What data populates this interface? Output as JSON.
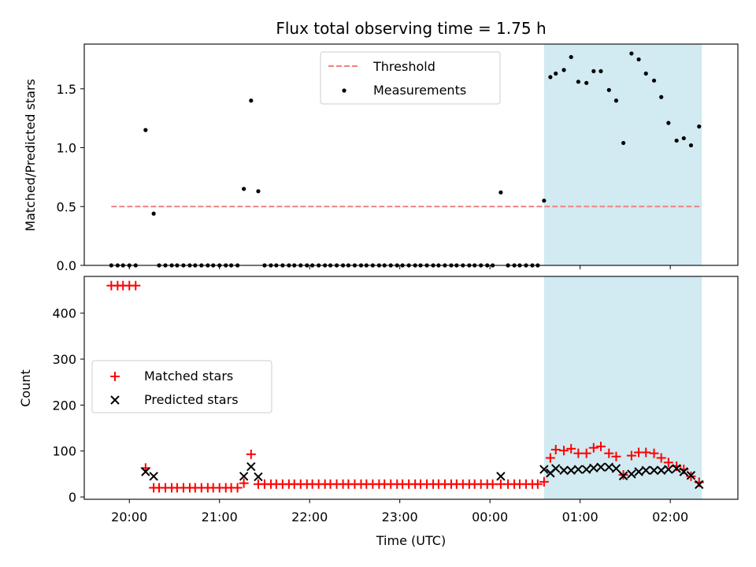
{
  "chart_data": [
    {
      "type": "scatter",
      "title": "Flux total observing time = 1.75 h",
      "ylabel": "Matched/Predicted stars",
      "ylim": [
        0,
        1.88
      ],
      "yticks": [
        "0.0",
        "0.5",
        "1.0",
        "1.5"
      ],
      "ytick_values": [
        0,
        0.5,
        1.0,
        1.5
      ],
      "legend_position": "upper center",
      "shaded_interval_hours": [
        24.6,
        26.35
      ],
      "threshold": {
        "name": "Threshold",
        "value": 0.5,
        "x_range": [
          19.8,
          26.35
        ],
        "color": "#f08080"
      },
      "series": [
        {
          "name": "Measurements",
          "color": "#000000",
          "marker": "dot",
          "points": [
            [
              19.8,
              0
            ],
            [
              19.87,
              0
            ],
            [
              19.93,
              0
            ],
            [
              20.0,
              0
            ],
            [
              20.07,
              0
            ],
            [
              20.18,
              1.15
            ],
            [
              20.27,
              0.44
            ],
            [
              20.33,
              0
            ],
            [
              20.4,
              0
            ],
            [
              20.47,
              0
            ],
            [
              20.53,
              0
            ],
            [
              20.6,
              0
            ],
            [
              20.67,
              0
            ],
            [
              20.73,
              0
            ],
            [
              20.8,
              0
            ],
            [
              20.87,
              0
            ],
            [
              20.93,
              0
            ],
            [
              21.0,
              0
            ],
            [
              21.07,
              0
            ],
            [
              21.13,
              0
            ],
            [
              21.2,
              0
            ],
            [
              21.27,
              0.65
            ],
            [
              21.35,
              1.4
            ],
            [
              21.43,
              0.63
            ],
            [
              21.5,
              0
            ],
            [
              21.57,
              0
            ],
            [
              21.63,
              0
            ],
            [
              21.7,
              0
            ],
            [
              21.77,
              0
            ],
            [
              21.83,
              0
            ],
            [
              21.9,
              0
            ],
            [
              21.97,
              0
            ],
            [
              22.03,
              0
            ],
            [
              22.1,
              0
            ],
            [
              22.17,
              0
            ],
            [
              22.23,
              0
            ],
            [
              22.3,
              0
            ],
            [
              22.37,
              0
            ],
            [
              22.43,
              0
            ],
            [
              22.5,
              0
            ],
            [
              22.57,
              0
            ],
            [
              22.63,
              0
            ],
            [
              22.7,
              0
            ],
            [
              22.77,
              0
            ],
            [
              22.83,
              0
            ],
            [
              22.9,
              0
            ],
            [
              22.97,
              0
            ],
            [
              23.03,
              0
            ],
            [
              23.1,
              0
            ],
            [
              23.17,
              0
            ],
            [
              23.23,
              0
            ],
            [
              23.3,
              0
            ],
            [
              23.37,
              0
            ],
            [
              23.43,
              0
            ],
            [
              23.5,
              0
            ],
            [
              23.57,
              0
            ],
            [
              23.63,
              0
            ],
            [
              23.7,
              0
            ],
            [
              23.77,
              0
            ],
            [
              23.83,
              0
            ],
            [
              23.9,
              0
            ],
            [
              23.97,
              0
            ],
            [
              24.03,
              0
            ],
            [
              24.12,
              0.62
            ],
            [
              24.2,
              0
            ],
            [
              24.27,
              0
            ],
            [
              24.33,
              0
            ],
            [
              24.4,
              0
            ],
            [
              24.47,
              0
            ],
            [
              24.53,
              0
            ],
            [
              24.6,
              0.55
            ],
            [
              24.67,
              1.6
            ],
            [
              24.73,
              1.63
            ],
            [
              24.82,
              1.66
            ],
            [
              24.9,
              1.77
            ],
            [
              24.98,
              1.56
            ],
            [
              25.07,
              1.55
            ],
            [
              25.15,
              1.65
            ],
            [
              25.23,
              1.65
            ],
            [
              25.32,
              1.49
            ],
            [
              25.4,
              1.4
            ],
            [
              25.48,
              1.04
            ],
            [
              25.57,
              1.8
            ],
            [
              25.65,
              1.75
            ],
            [
              25.73,
              1.63
            ],
            [
              25.82,
              1.57
            ],
            [
              25.9,
              1.43
            ],
            [
              25.98,
              1.21
            ],
            [
              26.07,
              1.06
            ],
            [
              26.15,
              1.08
            ],
            [
              26.23,
              1.02
            ],
            [
              26.32,
              1.18
            ]
          ]
        }
      ]
    },
    {
      "type": "scatter",
      "xlabel": "Time (UTC)",
      "ylabel": "Count",
      "ylim": [
        -5,
        480
      ],
      "yticks": [
        "0",
        "100",
        "200",
        "300",
        "400"
      ],
      "ytick_values": [
        0,
        100,
        200,
        300,
        400
      ],
      "xlim": [
        19.5,
        26.75
      ],
      "xticks": [
        "20:00",
        "21:00",
        "22:00",
        "23:00",
        "00:00",
        "01:00",
        "02:00"
      ],
      "xtick_values": [
        20,
        21,
        22,
        23,
        24,
        25,
        26
      ],
      "legend_position": "center left",
      "shaded_interval_hours": [
        24.6,
        26.35
      ],
      "series": [
        {
          "name": "Matched stars",
          "color": "#ff0000",
          "marker": "plus",
          "points": [
            [
              19.8,
              460
            ],
            [
              19.87,
              460
            ],
            [
              19.93,
              460
            ],
            [
              20.0,
              460
            ],
            [
              20.07,
              460
            ],
            [
              20.18,
              63
            ],
            [
              20.27,
              20
            ],
            [
              20.33,
              20
            ],
            [
              20.4,
              20
            ],
            [
              20.47,
              20
            ],
            [
              20.53,
              20
            ],
            [
              20.6,
              20
            ],
            [
              20.67,
              20
            ],
            [
              20.73,
              20
            ],
            [
              20.8,
              20
            ],
            [
              20.87,
              20
            ],
            [
              20.93,
              20
            ],
            [
              21.0,
              20
            ],
            [
              21.07,
              20
            ],
            [
              21.13,
              20
            ],
            [
              21.2,
              20
            ],
            [
              21.27,
              30
            ],
            [
              21.35,
              93
            ],
            [
              21.43,
              28
            ],
            [
              21.5,
              28
            ],
            [
              21.57,
              28
            ],
            [
              21.63,
              28
            ],
            [
              21.7,
              28
            ],
            [
              21.77,
              28
            ],
            [
              21.83,
              28
            ],
            [
              21.9,
              28
            ],
            [
              21.97,
              28
            ],
            [
              22.03,
              28
            ],
            [
              22.1,
              28
            ],
            [
              22.17,
              28
            ],
            [
              22.23,
              28
            ],
            [
              22.3,
              28
            ],
            [
              22.37,
              28
            ],
            [
              22.43,
              28
            ],
            [
              22.5,
              28
            ],
            [
              22.57,
              28
            ],
            [
              22.63,
              28
            ],
            [
              22.7,
              28
            ],
            [
              22.77,
              28
            ],
            [
              22.83,
              28
            ],
            [
              22.9,
              28
            ],
            [
              22.97,
              28
            ],
            [
              23.03,
              28
            ],
            [
              23.1,
              28
            ],
            [
              23.17,
              28
            ],
            [
              23.23,
              28
            ],
            [
              23.3,
              28
            ],
            [
              23.37,
              28
            ],
            [
              23.43,
              28
            ],
            [
              23.5,
              28
            ],
            [
              23.57,
              28
            ],
            [
              23.63,
              28
            ],
            [
              23.7,
              28
            ],
            [
              23.77,
              28
            ],
            [
              23.83,
              28
            ],
            [
              23.9,
              28
            ],
            [
              23.97,
              28
            ],
            [
              24.03,
              28
            ],
            [
              24.12,
              28
            ],
            [
              24.2,
              28
            ],
            [
              24.27,
              28
            ],
            [
              24.33,
              28
            ],
            [
              24.4,
              28
            ],
            [
              24.47,
              28
            ],
            [
              24.53,
              28
            ],
            [
              24.6,
              33
            ],
            [
              24.67,
              85
            ],
            [
              24.73,
              103
            ],
            [
              24.82,
              101
            ],
            [
              24.9,
              105
            ],
            [
              24.98,
              95
            ],
            [
              25.07,
              95
            ],
            [
              25.15,
              107
            ],
            [
              25.23,
              110
            ],
            [
              25.32,
              95
            ],
            [
              25.4,
              88
            ],
            [
              25.48,
              48
            ],
            [
              25.57,
              90
            ],
            [
              25.65,
              97
            ],
            [
              25.73,
              97
            ],
            [
              25.82,
              95
            ],
            [
              25.9,
              85
            ],
            [
              25.98,
              75
            ],
            [
              26.07,
              67
            ],
            [
              26.15,
              60
            ],
            [
              26.23,
              45
            ],
            [
              26.32,
              32
            ]
          ]
        },
        {
          "name": "Predicted stars",
          "color": "#000000",
          "marker": "x",
          "points": [
            [
              20.18,
              55
            ],
            [
              20.27,
              45
            ],
            [
              21.27,
              45
            ],
            [
              21.35,
              66
            ],
            [
              21.43,
              44
            ],
            [
              24.12,
              45
            ],
            [
              24.6,
              60
            ],
            [
              24.67,
              52
            ],
            [
              24.73,
              62
            ],
            [
              24.82,
              58
            ],
            [
              24.9,
              58
            ],
            [
              24.98,
              60
            ],
            [
              25.07,
              60
            ],
            [
              25.15,
              63
            ],
            [
              25.23,
              65
            ],
            [
              25.32,
              65
            ],
            [
              25.4,
              62
            ],
            [
              25.48,
              46
            ],
            [
              25.57,
              50
            ],
            [
              25.65,
              55
            ],
            [
              25.73,
              58
            ],
            [
              25.82,
              58
            ],
            [
              25.9,
              58
            ],
            [
              25.98,
              60
            ],
            [
              26.07,
              62
            ],
            [
              26.15,
              55
            ],
            [
              26.23,
              47
            ],
            [
              26.32,
              27
            ]
          ]
        }
      ]
    }
  ]
}
